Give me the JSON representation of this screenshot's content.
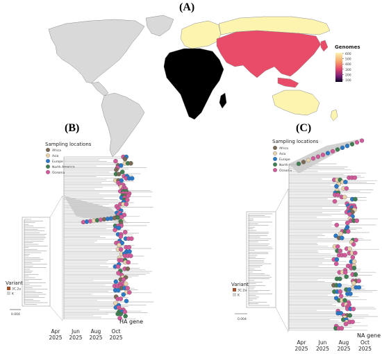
{
  "panels": [
    {
      "label": "(A)"
    },
    {
      "label": "(B)"
    },
    {
      "label": "(C)"
    }
  ],
  "map": {
    "legend_title": "Genomes",
    "legend_ticks": [
      "600",
      "500",
      "400",
      "300",
      "200",
      "100"
    ],
    "colors": {
      "americas": "#d9d9d9",
      "europe_north_asia_oceania": "#fdf4b0",
      "asia": "#e94c69",
      "africa": "#000000",
      "border": "#888888"
    }
  },
  "trees": [
    {
      "id": "B",
      "legend_title": "Sampling locations",
      "locations": [
        {
          "name": "Africa",
          "color": "#7a6a55"
        },
        {
          "name": "Asia",
          "color": "#e9d3ad"
        },
        {
          "name": "Europe",
          "color": "#2a78c8"
        },
        {
          "name": "North America",
          "color": "#3f7f52"
        },
        {
          "name": "Oceania",
          "color": "#d25a9a"
        }
      ],
      "variant_title": "Variant",
      "variants": [
        {
          "name": "3C.2a",
          "color": "#a0522d"
        },
        {
          "name": "K",
          "color": "#cfcfcf"
        }
      ],
      "scale": "0.004",
      "gene": "HA gene",
      "ticks": [
        {
          "month": "Apr",
          "year": "2025"
        },
        {
          "month": "Jun",
          "year": "2025"
        },
        {
          "month": "Aug",
          "year": "2025"
        },
        {
          "month": "Oct",
          "year": "2025"
        }
      ]
    },
    {
      "id": "C",
      "legend_title": "Sampling locations",
      "locations": [
        {
          "name": "Africa",
          "color": "#7a6a55"
        },
        {
          "name": "Asia",
          "color": "#e9d3ad"
        },
        {
          "name": "Europe",
          "color": "#2a78c8"
        },
        {
          "name": "North America",
          "color": "#3f7f52"
        },
        {
          "name": "Oceania",
          "color": "#d25a9a"
        }
      ],
      "variant_title": "Variant",
      "variants": [
        {
          "name": "3C.2a",
          "color": "#a0522d"
        },
        {
          "name": "K",
          "color": "#cfcfcf"
        }
      ],
      "scale": "0.004",
      "gene": "NA gene",
      "ticks": [
        {
          "month": "Apr",
          "year": "2025"
        },
        {
          "month": "Jun",
          "year": "2025"
        },
        {
          "month": "Aug",
          "year": "2025"
        },
        {
          "month": "Oct",
          "year": "2025"
        }
      ]
    }
  ]
}
